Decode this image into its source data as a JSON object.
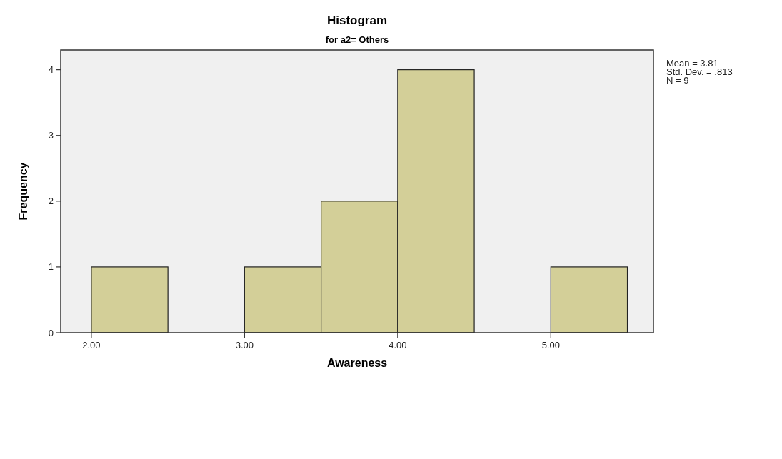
{
  "chart_data": {
    "type": "histogram",
    "title": "Histogram",
    "subtitle": "for a2= Others",
    "xlabel": "Awareness",
    "ylabel": "Frequency",
    "bins": [
      2.0,
      2.5,
      3.0,
      3.5,
      4.0,
      4.5,
      5.0,
      5.5
    ],
    "values": [
      1,
      0,
      1,
      2,
      4,
      0,
      1
    ],
    "color": "#d3cf98",
    "xlim": [
      1.8,
      5.67
    ],
    "xticks": [
      {
        "value": 2,
        "label": "2.00"
      },
      {
        "value": 3,
        "label": "3.00"
      },
      {
        "value": 4,
        "label": "4.00"
      },
      {
        "value": 5,
        "label": "5.00"
      }
    ],
    "ylim": [
      0,
      4.3
    ],
    "yticks": [
      0,
      1,
      2,
      3,
      4
    ],
    "annotations": [
      "Mean = 3.81",
      "Std. Dev. = .813",
      "N = 9"
    ]
  }
}
